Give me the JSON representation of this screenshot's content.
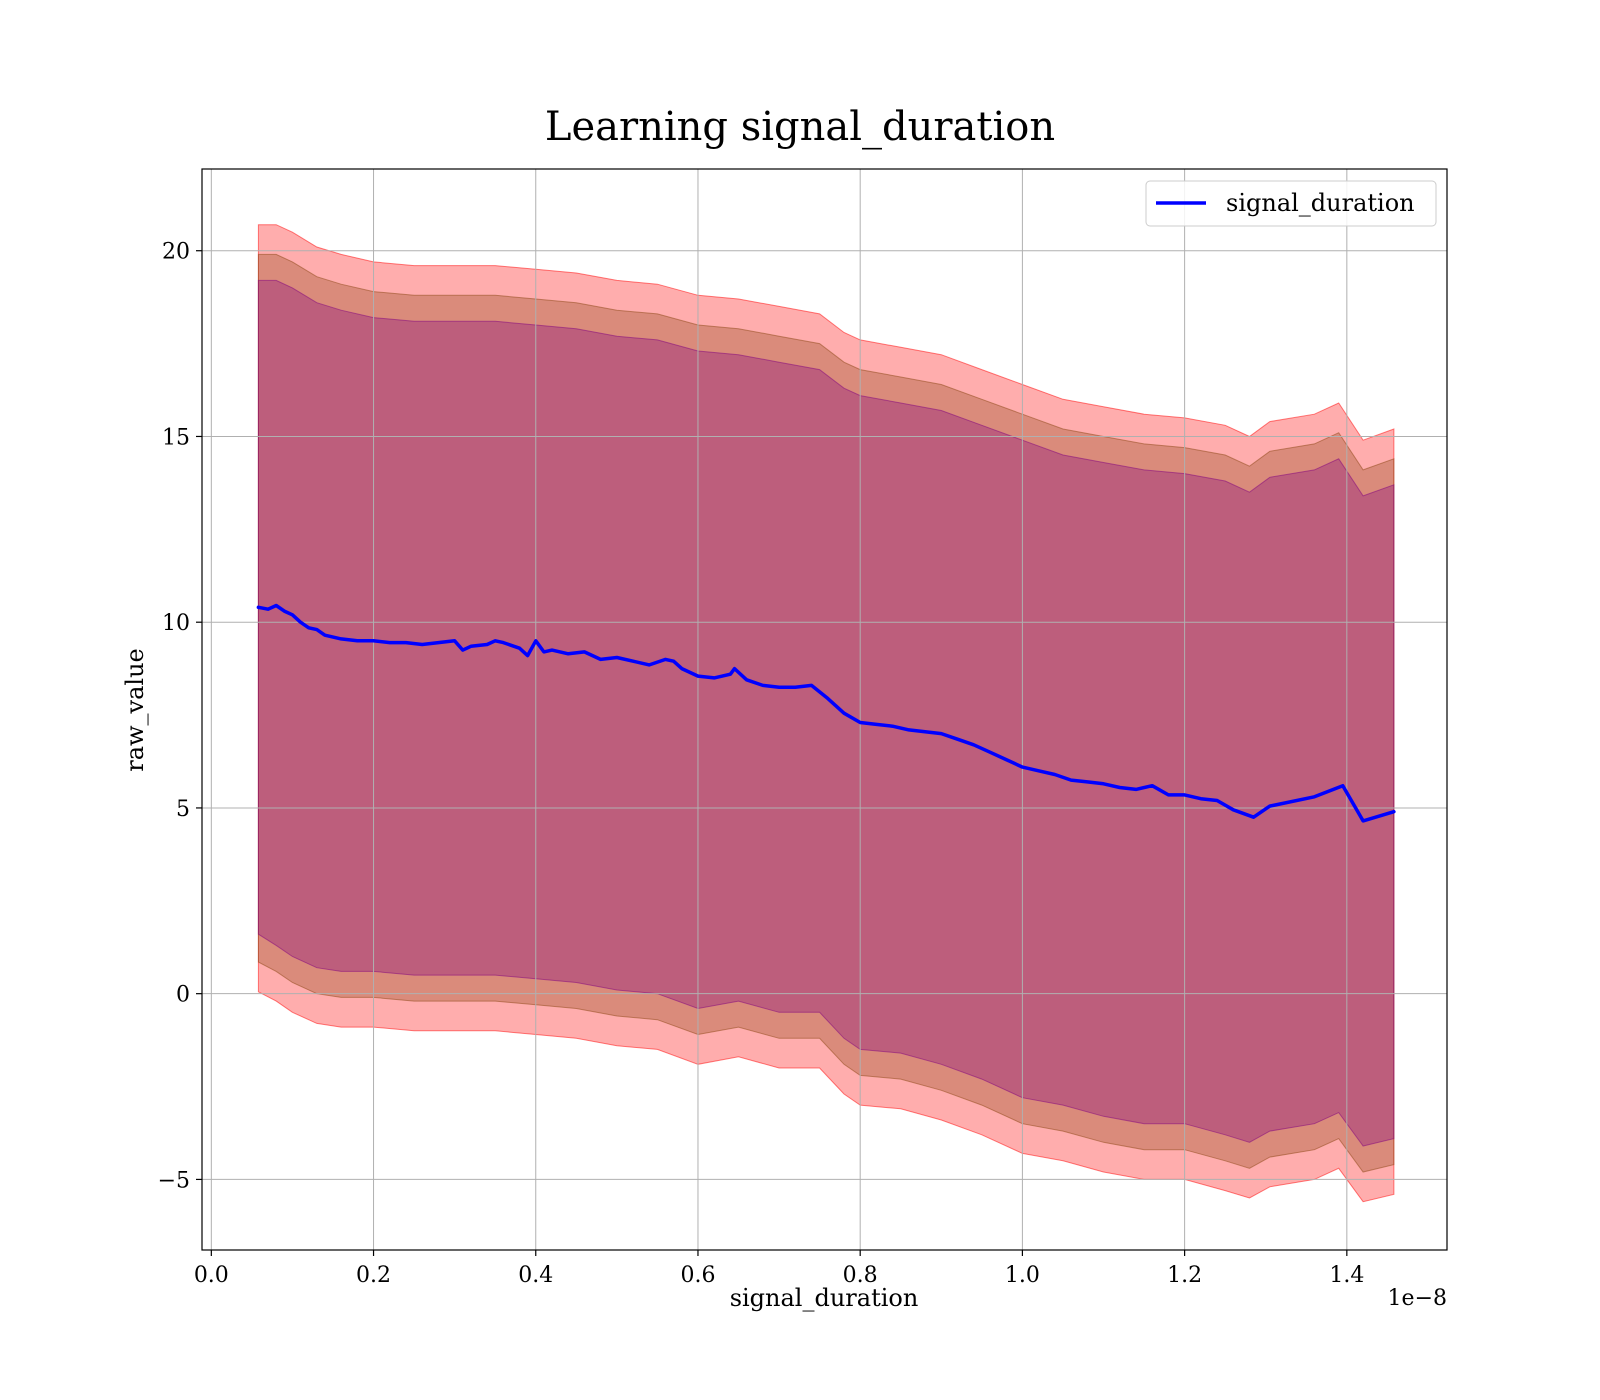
{
  "chart_data": {
    "type": "line",
    "title": "Learning signal_duration",
    "xlabel": "signal_duration",
    "ylabel": "raw_value",
    "x_offset_label": "1e−8",
    "xlim": [
      -0.0115,
      1.5235
    ],
    "ylim": [
      -6.9,
      22.2
    ],
    "x_ticks": [
      0.0,
      0.2,
      0.4,
      0.6,
      0.8,
      1.0,
      1.2,
      1.4
    ],
    "x_tick_labels": [
      "0.0",
      "0.2",
      "0.4",
      "0.6",
      "0.8",
      "1.0",
      "1.2",
      "1.4"
    ],
    "y_ticks": [
      -5,
      0,
      5,
      10,
      15,
      20
    ],
    "y_tick_labels": [
      "−5",
      "0",
      "5",
      "10",
      "15",
      "20"
    ],
    "grid": true,
    "legend": {
      "position": "top-right",
      "entries": [
        "signal_duration"
      ]
    },
    "series": [
      {
        "name": "signal_duration",
        "color": "#0000ff",
        "x": [
          0.058,
          0.07,
          0.08,
          0.09,
          0.1,
          0.11,
          0.12,
          0.13,
          0.14,
          0.15,
          0.16,
          0.18,
          0.2,
          0.22,
          0.24,
          0.26,
          0.28,
          0.3,
          0.31,
          0.32,
          0.34,
          0.35,
          0.36,
          0.38,
          0.39,
          0.4,
          0.41,
          0.42,
          0.44,
          0.46,
          0.48,
          0.5,
          0.52,
          0.54,
          0.56,
          0.57,
          0.58,
          0.6,
          0.62,
          0.64,
          0.645,
          0.66,
          0.68,
          0.7,
          0.72,
          0.74,
          0.76,
          0.78,
          0.8,
          0.82,
          0.84,
          0.86,
          0.88,
          0.9,
          0.92,
          0.94,
          0.96,
          0.98,
          1.0,
          1.02,
          1.04,
          1.06,
          1.08,
          1.1,
          1.12,
          1.14,
          1.16,
          1.18,
          1.2,
          1.22,
          1.24,
          1.26,
          1.285,
          1.305,
          1.36,
          1.395,
          1.42,
          1.458
        ],
        "y": [
          10.4,
          10.35,
          10.45,
          10.3,
          10.2,
          10.0,
          9.85,
          9.8,
          9.65,
          9.6,
          9.55,
          9.5,
          9.5,
          9.45,
          9.45,
          9.4,
          9.45,
          9.5,
          9.25,
          9.35,
          9.4,
          9.5,
          9.45,
          9.3,
          9.1,
          9.5,
          9.2,
          9.25,
          9.15,
          9.2,
          9.0,
          9.05,
          8.95,
          8.85,
          9.0,
          8.95,
          8.75,
          8.55,
          8.5,
          8.6,
          8.75,
          8.45,
          8.3,
          8.25,
          8.25,
          8.3,
          7.95,
          7.55,
          7.3,
          7.25,
          7.2,
          7.1,
          7.05,
          7.0,
          6.85,
          6.7,
          6.5,
          6.3,
          6.1,
          6.0,
          5.9,
          5.75,
          5.7,
          5.65,
          5.55,
          5.5,
          5.6,
          5.35,
          5.35,
          5.25,
          5.2,
          4.95,
          4.75,
          5.05,
          5.3,
          5.6,
          4.65,
          4.9
        ]
      }
    ],
    "bands": [
      {
        "name": "outer band",
        "color": "#ff0000",
        "opacity": 0.32,
        "x": [
          0.058,
          0.08,
          0.1,
          0.13,
          0.16,
          0.2,
          0.25,
          0.3,
          0.35,
          0.4,
          0.45,
          0.5,
          0.55,
          0.6,
          0.65,
          0.7,
          0.75,
          0.78,
          0.8,
          0.85,
          0.9,
          0.95,
          1.0,
          1.05,
          1.1,
          1.15,
          1.2,
          1.25,
          1.28,
          1.305,
          1.36,
          1.39,
          1.42,
          1.458
        ],
        "upper": [
          20.7,
          20.7,
          20.5,
          20.1,
          19.9,
          19.7,
          19.6,
          19.6,
          19.6,
          19.5,
          19.4,
          19.2,
          19.1,
          18.8,
          18.7,
          18.5,
          18.3,
          17.8,
          17.6,
          17.4,
          17.2,
          16.8,
          16.4,
          16.0,
          15.8,
          15.6,
          15.5,
          15.3,
          15.0,
          15.4,
          15.6,
          15.9,
          14.9,
          15.2
        ],
        "lower": [
          0.05,
          -0.2,
          -0.5,
          -0.8,
          -0.9,
          -0.9,
          -1.0,
          -1.0,
          -1.0,
          -1.1,
          -1.2,
          -1.4,
          -1.5,
          -1.9,
          -1.7,
          -2.0,
          -2.0,
          -2.7,
          -3.0,
          -3.1,
          -3.4,
          -3.8,
          -4.3,
          -4.5,
          -4.8,
          -5.0,
          -5.0,
          -5.3,
          -5.5,
          -5.2,
          -5.0,
          -4.7,
          -5.6,
          -5.4
        ]
      },
      {
        "name": "middle band",
        "color": "#8b4513",
        "opacity": 0.32,
        "x": [
          0.058,
          0.08,
          0.1,
          0.13,
          0.16,
          0.2,
          0.25,
          0.3,
          0.35,
          0.4,
          0.45,
          0.5,
          0.55,
          0.6,
          0.65,
          0.7,
          0.75,
          0.78,
          0.8,
          0.85,
          0.9,
          0.95,
          1.0,
          1.05,
          1.1,
          1.15,
          1.2,
          1.25,
          1.28,
          1.305,
          1.36,
          1.39,
          1.42,
          1.458
        ],
        "upper": [
          19.9,
          19.9,
          19.7,
          19.3,
          19.1,
          18.9,
          18.8,
          18.8,
          18.8,
          18.7,
          18.6,
          18.4,
          18.3,
          18.0,
          17.9,
          17.7,
          17.5,
          17.0,
          16.8,
          16.6,
          16.4,
          16.0,
          15.6,
          15.2,
          15.0,
          14.8,
          14.7,
          14.5,
          14.2,
          14.6,
          14.8,
          15.1,
          14.1,
          14.4
        ],
        "lower": [
          0.85,
          0.6,
          0.3,
          0.0,
          -0.1,
          -0.1,
          -0.2,
          -0.2,
          -0.2,
          -0.3,
          -0.4,
          -0.6,
          -0.7,
          -1.1,
          -0.9,
          -1.2,
          -1.2,
          -1.9,
          -2.2,
          -2.3,
          -2.6,
          -3.0,
          -3.5,
          -3.7,
          -4.0,
          -4.2,
          -4.2,
          -4.5,
          -4.7,
          -4.4,
          -4.2,
          -3.9,
          -4.8,
          -4.6
        ]
      },
      {
        "name": "inner band",
        "color": "#800080",
        "opacity": 0.32,
        "x": [
          0.058,
          0.08,
          0.1,
          0.13,
          0.16,
          0.2,
          0.25,
          0.3,
          0.35,
          0.4,
          0.45,
          0.5,
          0.55,
          0.6,
          0.65,
          0.7,
          0.75,
          0.78,
          0.8,
          0.85,
          0.9,
          0.95,
          1.0,
          1.05,
          1.1,
          1.15,
          1.2,
          1.25,
          1.28,
          1.305,
          1.36,
          1.39,
          1.42,
          1.458
        ],
        "upper": [
          19.2,
          19.2,
          19.0,
          18.6,
          18.4,
          18.2,
          18.1,
          18.1,
          18.1,
          18.0,
          17.9,
          17.7,
          17.6,
          17.3,
          17.2,
          17.0,
          16.8,
          16.3,
          16.1,
          15.9,
          15.7,
          15.3,
          14.9,
          14.5,
          14.3,
          14.1,
          14.0,
          13.8,
          13.5,
          13.9,
          14.1,
          14.4,
          13.4,
          13.7
        ],
        "lower": [
          1.6,
          1.3,
          1.0,
          0.7,
          0.6,
          0.6,
          0.5,
          0.5,
          0.5,
          0.4,
          0.3,
          0.1,
          0.0,
          -0.4,
          -0.2,
          -0.5,
          -0.5,
          -1.2,
          -1.5,
          -1.6,
          -1.9,
          -2.3,
          -2.8,
          -3.0,
          -3.3,
          -3.5,
          -3.5,
          -3.8,
          -4.0,
          -3.7,
          -3.5,
          -3.2,
          -4.1,
          -3.9
        ]
      }
    ]
  }
}
